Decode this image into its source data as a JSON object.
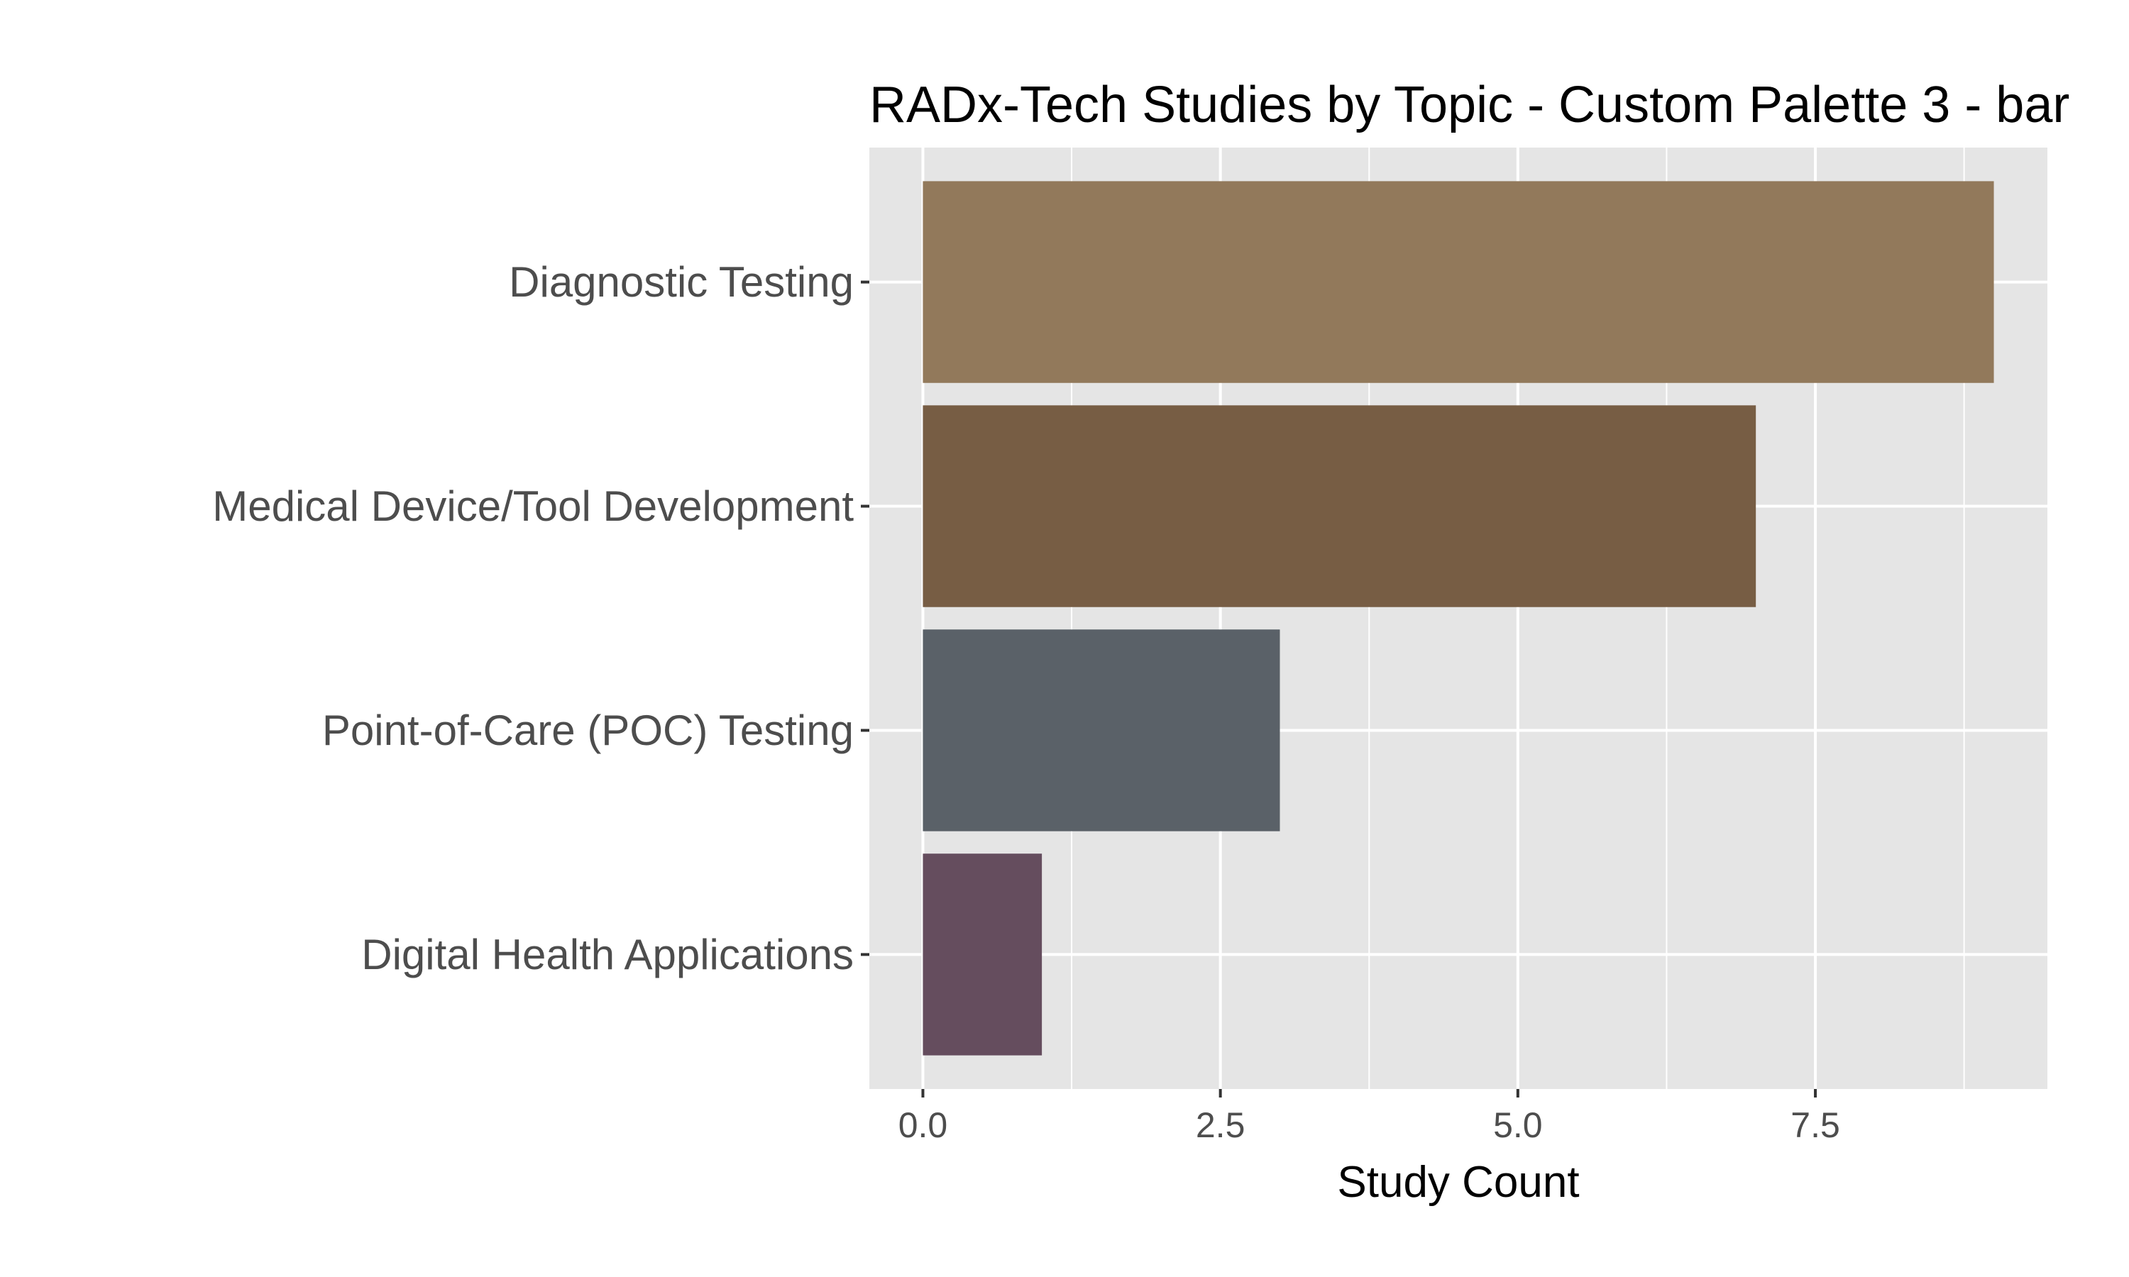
{
  "chart_data": {
    "type": "bar",
    "orientation": "horizontal",
    "title": "RADx-Tech Studies by Topic - Custom Palette 3 - bar",
    "xlabel": "Study Count",
    "ylabel": "",
    "categories": [
      "Diagnostic Testing",
      "Medical Device/Tool Development",
      "Point-of-Care (POC) Testing",
      "Digital Health Applications"
    ],
    "values": [
      9,
      7,
      3,
      1
    ],
    "bar_colors": [
      "#92795b",
      "#775d44",
      "#5a6168",
      "#654d5e"
    ],
    "xlim": [
      -0.45,
      9.45
    ],
    "x_ticks": [
      0,
      2.5,
      5,
      7.5
    ],
    "x_tick_labels": [
      "0.0",
      "2.5",
      "5.0",
      "7.5"
    ],
    "x_minor_ticks": [
      1.25,
      3.75,
      6.25,
      8.75
    ],
    "grid": true,
    "panel_background": "#e5e5e5",
    "grid_color": "#ffffff",
    "legend": "none"
  }
}
